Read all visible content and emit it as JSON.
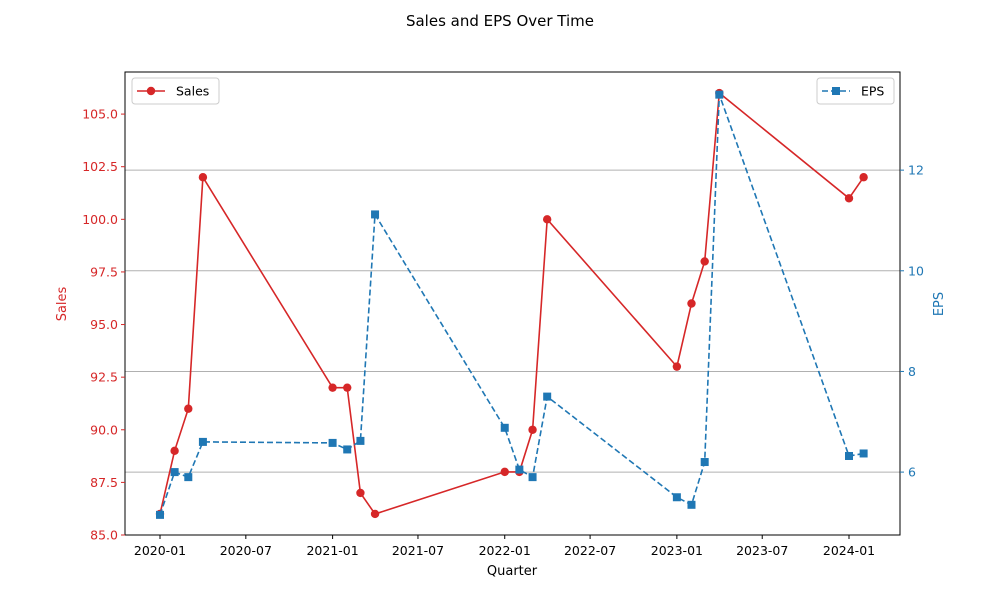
{
  "chart_data": {
    "type": "line",
    "title": "Sales and EPS Over Time",
    "xlabel": "Quarter",
    "ylabel_left": "Sales",
    "ylabel_right": "EPS",
    "x_ticks": [
      "2020-01",
      "2020-07",
      "2021-01",
      "2021-07",
      "2022-01",
      "2022-07",
      "2023-01",
      "2023-07",
      "2024-01"
    ],
    "y_left_ticks": [
      "85.0",
      "87.5",
      "90.0",
      "92.5",
      "95.0",
      "97.5",
      "100.0",
      "102.5",
      "105.0"
    ],
    "y_right_ticks": [
      "6",
      "8",
      "10",
      "12"
    ],
    "ylim_left": [
      85,
      107
    ],
    "ylim_right": [
      4.75,
      13.95
    ],
    "grid": "right-axis horizontal",
    "colors": {
      "sales": "#d62728",
      "eps": "#1f77b4",
      "grid": "#b0b0b0"
    },
    "x": [
      "2020-01-01",
      "2020-02-01",
      "2020-03-01",
      "2020-04-01",
      "2021-01-01",
      "2021-02-01",
      "2021-03-01",
      "2021-04-01",
      "2022-01-01",
      "2022-02-01",
      "2022-03-01",
      "2022-04-01",
      "2023-01-01",
      "2023-02-01",
      "2023-03-01",
      "2023-04-01",
      "2024-01-01",
      "2024-02-01"
    ],
    "series": [
      {
        "name": "Sales",
        "axis": "left",
        "marker": "circle",
        "linestyle": "solid",
        "values": [
          86,
          89,
          91,
          102,
          92,
          92,
          87,
          86,
          88,
          88,
          90,
          100,
          93,
          96,
          98,
          106,
          101,
          102
        ]
      },
      {
        "name": "EPS",
        "axis": "right",
        "marker": "square",
        "linestyle": "dashed",
        "values": [
          5.15,
          6.0,
          5.9,
          6.6,
          6.58,
          6.45,
          6.62,
          11.12,
          6.88,
          6.05,
          5.9,
          7.5,
          5.5,
          5.35,
          6.2,
          13.5,
          6.32,
          6.37
        ]
      }
    ],
    "legend": [
      {
        "label": "Sales",
        "placement": "top-left"
      },
      {
        "label": "EPS",
        "placement": "top-right"
      }
    ]
  }
}
